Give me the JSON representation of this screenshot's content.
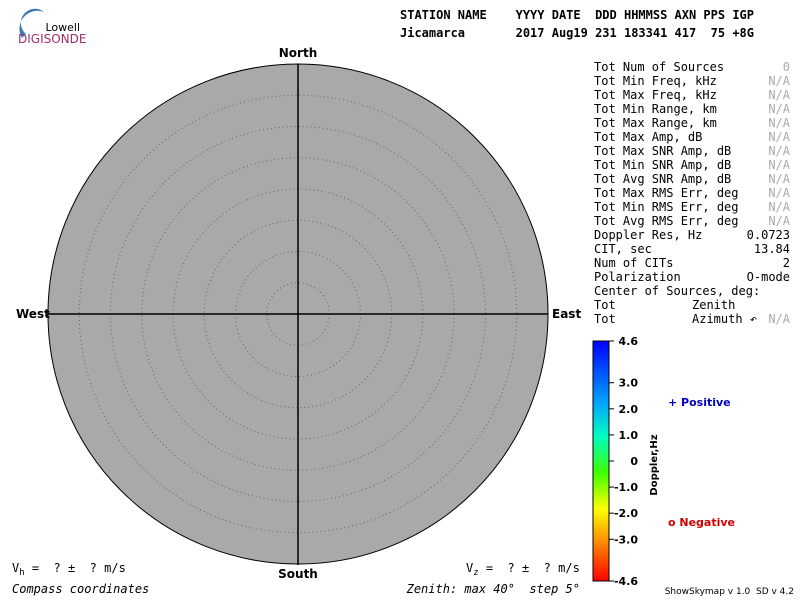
{
  "logo": {
    "top": "Lowell",
    "bottom": "DIGISONDE"
  },
  "header": {
    "labels": "STATION NAME    YYYY DATE  DDD HHMMSS AXN PPS IGP",
    "values": "Jicamarca       2017 Aug19 231 183341 417  75 +8G"
  },
  "compass": {
    "north": "North",
    "south": "South",
    "east": "East",
    "west": "West"
  },
  "zenith_axis": {
    "label": "Zenith: max 40°  step 5°",
    "max": 40,
    "step": 5
  },
  "stats": [
    {
      "label": "Tot Num of Sources",
      "value": "0"
    },
    {
      "label": "Tot Min Freq, kHz",
      "value": "N/A"
    },
    {
      "label": "Tot Max Freq, kHz",
      "value": "N/A"
    },
    {
      "label": "Tot Min Range, km",
      "value": "N/A"
    },
    {
      "label": "Tot Max Range, km",
      "value": "N/A"
    },
    {
      "label": "Tot Max Amp, dB",
      "value": "N/A"
    },
    {
      "label": "Tot Max SNR Amp, dB",
      "value": "N/A"
    },
    {
      "label": "Tot Min SNR Amp, dB",
      "value": "N/A"
    },
    {
      "label": "Tot Avg SNR Amp, dB",
      "value": "N/A"
    },
    {
      "label": "Tot Max RMS Err, deg",
      "value": "N/A"
    },
    {
      "label": "Tot Min RMS Err, deg",
      "value": "N/A"
    },
    {
      "label": "Tot Avg RMS Err, deg",
      "value": "N/A"
    },
    {
      "label": "Doppler Res, Hz",
      "value": "0.0723"
    },
    {
      "label": "CIT, sec",
      "value": "13.84"
    },
    {
      "label": "Num of CITs",
      "value": "2"
    },
    {
      "label": "Polarization",
      "value": "O-mode"
    },
    {
      "label": "Center of Sources, deg:"
    },
    {
      "label": "Tot",
      "sub": "Zenith"
    },
    {
      "label": "Tot",
      "sub": "Azimuth ↶",
      "value": "N/A"
    }
  ],
  "colorbar": {
    "title": "Doppler,Hz",
    "lim": [
      -4.6,
      4.6
    ],
    "ticks": [
      4.6,
      {
        "value": 3,
        "label": "3.0"
      },
      {
        "value": 2,
        "label": "2.0"
      },
      {
        "value": 1,
        "label": "1.0"
      },
      0,
      {
        "value": -1,
        "label": "-1.0"
      },
      {
        "value": -2,
        "label": "-2.0"
      },
      {
        "value": -3,
        "label": "-3.0"
      },
      -4.6
    ]
  },
  "legend": {
    "positive": "+ Positive",
    "negative": "o Negative"
  },
  "footer": {
    "vh": {
      "symbol": "V",
      "sub": "h",
      "text": " =  ? ±  ? m/s"
    },
    "vz": {
      "symbol": "V",
      "sub": "z",
      "text": " =  ? ±  ? m/s"
    },
    "coords": "Compass coordinates",
    "version": "ShowSkymap v 1.0  SD v 4.2"
  }
}
